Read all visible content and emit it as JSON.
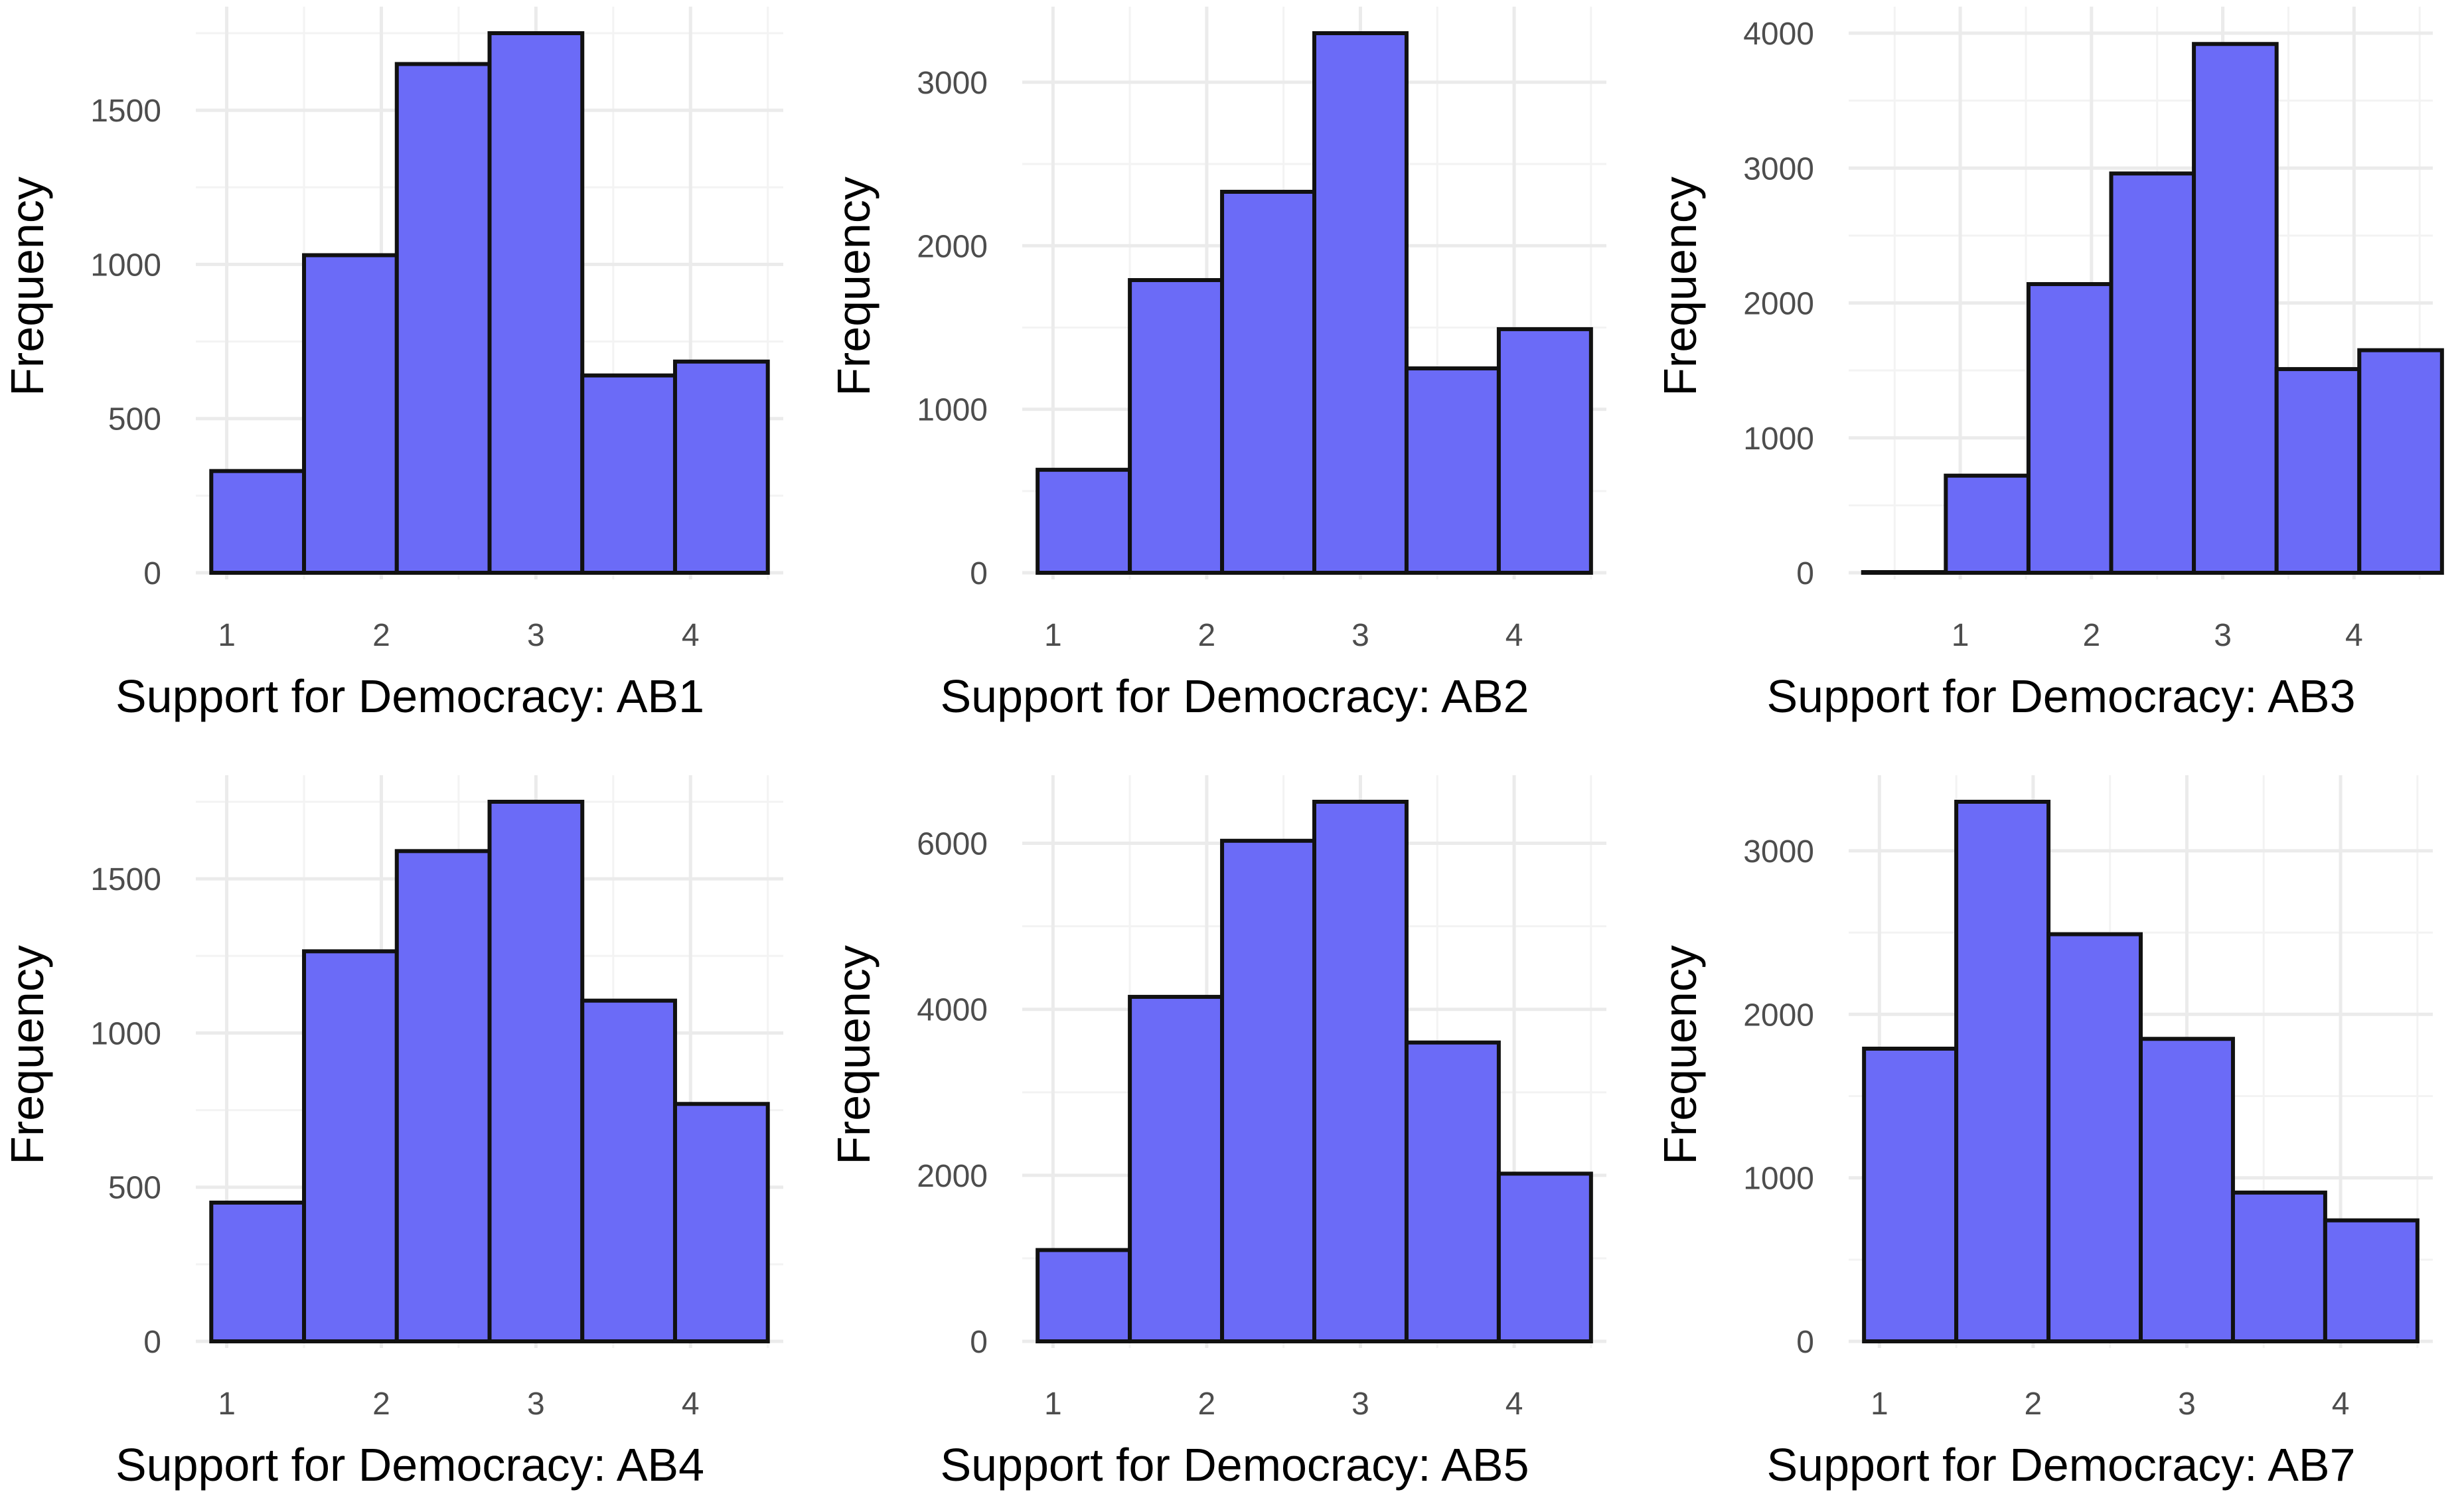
{
  "colors": {
    "bar_fill": "#6b6bf7",
    "bar_stroke": "#111111",
    "grid": "#ebebeb",
    "tick_text": "#4d4d4d"
  },
  "chart_data": [
    {
      "type": "bar",
      "title": "",
      "xlabel": "Support for Democracy: AB1",
      "ylabel": "Frequency",
      "bin_width": 0.6,
      "bin_start": 0.9,
      "xlim": [
        0.8,
        4.6
      ],
      "x_ticks": [
        1,
        2,
        3,
        4
      ],
      "ylim": [
        0,
        1750
      ],
      "y_ticks": [
        0,
        500,
        1000,
        1500
      ],
      "values": [
        330,
        1030,
        1650,
        1750,
        640,
        685
      ]
    },
    {
      "type": "bar",
      "title": "",
      "xlabel": "Support for Democracy: AB2",
      "ylabel": "Frequency",
      "bin_width": 0.6,
      "bin_start": 0.9,
      "xlim": [
        0.8,
        4.6
      ],
      "x_ticks": [
        1,
        2,
        3,
        4
      ],
      "ylim": [
        0,
        3300
      ],
      "y_ticks": [
        0,
        1000,
        2000,
        3000
      ],
      "values": [
        630,
        1790,
        2330,
        3300,
        1250,
        1490
      ]
    },
    {
      "type": "bar",
      "title": "",
      "xlabel": "Support for Democracy: AB3",
      "ylabel": "Frequency",
      "bin_width": 0.63,
      "bin_start": 0.26,
      "xlim": [
        0.15,
        4.6
      ],
      "x_ticks": [
        1,
        2,
        3,
        4
      ],
      "ylim": [
        0,
        4000
      ],
      "y_ticks": [
        0,
        1000,
        2000,
        3000,
        4000
      ],
      "values": [
        5,
        720,
        2140,
        2960,
        3920,
        1510,
        1650
      ]
    },
    {
      "type": "bar",
      "title": "",
      "xlabel": "Support for Democracy: AB4",
      "ylabel": "Frequency",
      "bin_width": 0.6,
      "bin_start": 0.9,
      "xlim": [
        0.8,
        4.6
      ],
      "x_ticks": [
        1,
        2,
        3,
        4
      ],
      "ylim": [
        0,
        1750
      ],
      "y_ticks": [
        0,
        500,
        1000,
        1500
      ],
      "values": [
        450,
        1265,
        1590,
        1750,
        1105,
        770
      ]
    },
    {
      "type": "bar",
      "title": "",
      "xlabel": "Support for Democracy: AB5",
      "ylabel": "Frequency",
      "bin_width": 0.6,
      "bin_start": 0.9,
      "xlim": [
        0.8,
        4.6
      ],
      "x_ticks": [
        1,
        2,
        3,
        4
      ],
      "ylim": [
        0,
        6500
      ],
      "y_ticks": [
        0,
        2000,
        4000,
        6000
      ],
      "values": [
        1100,
        4150,
        6030,
        6500,
        3600,
        2020
      ]
    },
    {
      "type": "bar",
      "title": "",
      "xlabel": "Support for Democracy: AB7",
      "ylabel": "Frequency",
      "bin_width": 0.6,
      "bin_start": 0.9,
      "xlim": [
        0.8,
        4.6
      ],
      "x_ticks": [
        1,
        2,
        3,
        4
      ],
      "ylim": [
        0,
        3300
      ],
      "y_ticks": [
        0,
        1000,
        2000,
        3000
      ],
      "values": [
        1790,
        3300,
        2490,
        1850,
        910,
        740
      ]
    }
  ]
}
